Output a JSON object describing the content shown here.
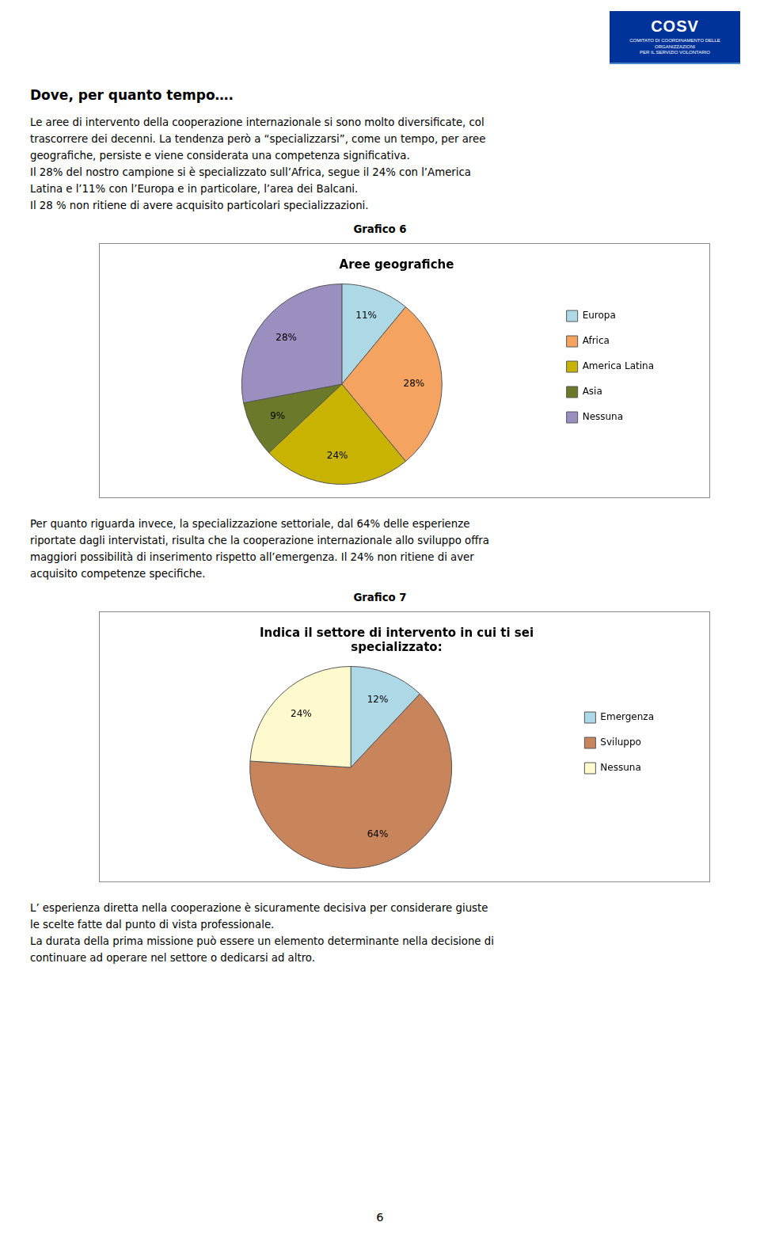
{
  "page": {
    "background_color": "#ffffff",
    "text_color": "#000000",
    "logo_color": "#003399",
    "logo_text": "COSV",
    "logo_sub": [
      "COMITATO DI COORDINAMENTO DELLE ORGANIZZAZIONI",
      "PER IL SERVIZIO VOLONTARIO"
    ],
    "title": "Dove, per quanto tempo….",
    "paragraphs": [
      [
        "Le aree di intervento della cooperazione internazionale si sono molto diversificate, col",
        "trascorrere dei decenni. La tendenza però a “specializzarsi”, come un tempo, per aree",
        "geografiche, persiste e viene considerata una competenza significativa.",
        "Il 28% del nostro campione si è specializzato sull’Africa, segue il  24% con l’America",
        "Latina e l’11% con l’Europa e in particolare, l’area dei Balcani.",
        "Il 28 % non ritiene di avere acquisito particolari specializzazioni."
      ],
      [
        "Per quanto riguarda invece, la specializzazione settoriale, dal 64% delle esperienze",
        "riportate dagli intervistati, risulta che la cooperazione internazionale allo sviluppo offra",
        "maggiori possibilità di inserimento rispetto all’emergenza. Il 24% non ritiene di aver",
        "acquisito competenze specifiche."
      ],
      [
        "L’ esperienza diretta nella cooperazione è sicuramente decisiva per considerare giuste",
        "le scelte fatte dal punto di vista professionale.",
        "La durata della prima missione può essere un elemento determinante nella decisione di",
        "continuare ad operare nel settore o dedicarsi ad altro."
      ]
    ],
    "page_number": "6"
  },
  "chart_data": [
    {
      "type": "pie",
      "subtitle": "Grafico 6",
      "title": "Aree geografiche",
      "categories": [
        "Europa",
        "Africa",
        "America Latina",
        "Asia",
        "Nessuna"
      ],
      "values": [
        11,
        28,
        24,
        9,
        28
      ],
      "value_labels": [
        "11%",
        "28%",
        "24%",
        "9%",
        "28%"
      ],
      "colors": [
        "#add8e6",
        "#f4a460",
        "#c8b400",
        "#6b7a2a",
        "#9b8fc0"
      ],
      "data_labels": true,
      "legend": "right"
    },
    {
      "type": "pie",
      "subtitle": "Grafico 7",
      "title": "Indica il settore di intervento in cui ti sei\nspecializzato:",
      "categories": [
        "Emergenza",
        "Sviluppo",
        "Nessuna"
      ],
      "values": [
        12,
        64,
        24
      ],
      "value_labels": [
        "12%",
        "64%",
        "24%"
      ],
      "colors": [
        "#add8e6",
        "#c8845a",
        "#fffacd"
      ],
      "data_labels": true,
      "legend": "right"
    }
  ]
}
